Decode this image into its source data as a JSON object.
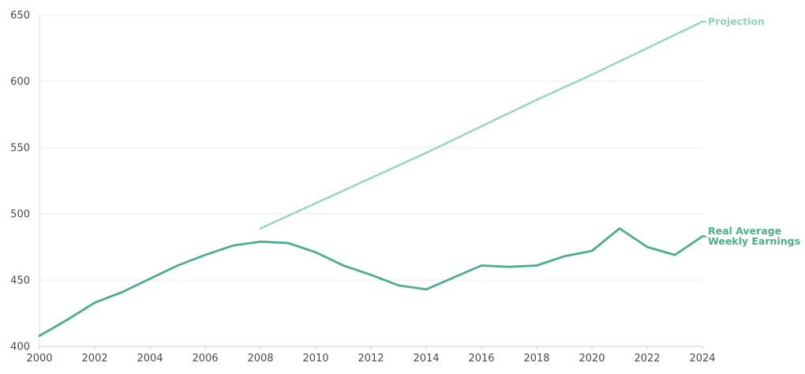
{
  "chart_data": {
    "type": "line",
    "title": "",
    "xlabel": "",
    "ylabel": "",
    "xlim": [
      2000,
      2024
    ],
    "ylim": [
      400,
      650
    ],
    "x_ticks": [
      2000,
      2002,
      2004,
      2006,
      2008,
      2010,
      2012,
      2014,
      2016,
      2018,
      2020,
      2022,
      2024
    ],
    "y_ticks": [
      400,
      450,
      500,
      550,
      600,
      650
    ],
    "grid": "horizontal",
    "legend": "direct labels at right end of lines",
    "series": [
      {
        "name": "Real Average Weekly Earnings",
        "label_lines": [
          "Real Average",
          "Weekly Earnings"
        ],
        "color": "#4caf8a",
        "style": "solid",
        "x": [
          2000,
          2001,
          2002,
          2003,
          2004,
          2005,
          2006,
          2007,
          2008,
          2009,
          2010,
          2011,
          2012,
          2013,
          2014,
          2015,
          2016,
          2017,
          2018,
          2019,
          2020,
          2021,
          2022,
          2023,
          2024
        ],
        "values": [
          408,
          420,
          433,
          441,
          451,
          461,
          469,
          476,
          479,
          478,
          471,
          461,
          454,
          446,
          443,
          452,
          461,
          460,
          461,
          468,
          472,
          489,
          475,
          469,
          483
        ]
      },
      {
        "name": "Projection",
        "label_lines": [
          "Projection"
        ],
        "color": "#8fd6b0",
        "style": "dashed",
        "x": [
          2008,
          2010,
          2012,
          2014,
          2016,
          2018,
          2020,
          2022,
          2024
        ],
        "values": [
          489,
          508,
          527,
          546,
          566,
          586,
          605,
          625,
          645
        ]
      }
    ]
  }
}
